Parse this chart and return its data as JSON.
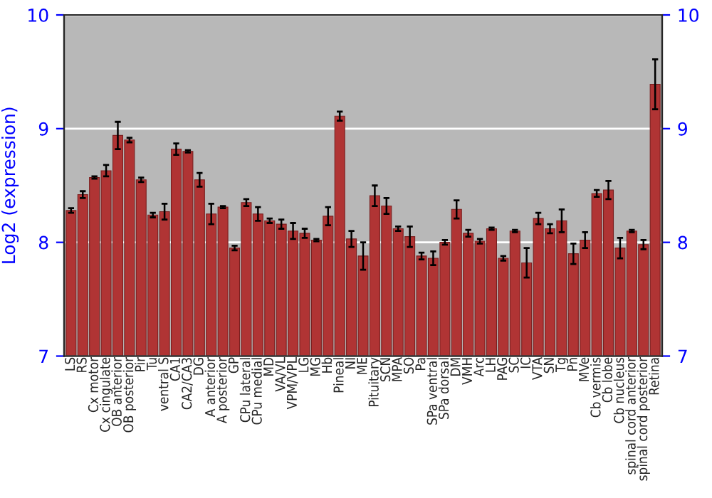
{
  "chart_data": {
    "type": "bar",
    "ylabel": "Log2 (expression)",
    "categories": [
      "LS",
      "RS",
      "Cx motor",
      "Cx cingulate",
      "OB anterior",
      "OB posterior",
      "Pir",
      "Tu",
      "ventral S",
      "CA1",
      "CA2/CA3",
      "DG",
      "A anterior",
      "A posterior",
      "GP",
      "CPu lateral",
      "CPu medial",
      "MD",
      "VA/VL",
      "VPM/VPL",
      "LG",
      "MG",
      "Hb",
      "Pineal",
      "NI",
      "ME",
      "Pituitary",
      "SCN",
      "MPA",
      "SO",
      "Pa",
      "SPa ventral",
      "SPa dorsal",
      "DM",
      "VMH",
      "Arc",
      "LH",
      "PAG",
      "SC",
      "IC",
      "VTA",
      "SN",
      "Tg",
      "Pn",
      "MVe",
      "Cb vermis",
      "Cb lobe",
      "Cb nucleus",
      "spinal cord anterior",
      "spinal cord posterior",
      "Retina"
    ],
    "values": [
      8.28,
      8.42,
      8.57,
      8.63,
      8.94,
      8.9,
      8.55,
      8.24,
      8.27,
      8.82,
      8.8,
      8.55,
      8.25,
      8.31,
      7.95,
      8.35,
      8.25,
      8.19,
      8.16,
      8.1,
      8.08,
      8.02,
      8.23,
      9.11,
      8.03,
      7.88,
      8.41,
      8.32,
      8.12,
      8.05,
      7.88,
      7.86,
      8.0,
      8.29,
      8.08,
      8.01,
      8.12,
      7.86,
      8.1,
      7.82,
      8.21,
      8.12,
      8.19,
      7.9,
      8.02,
      8.43,
      8.46,
      7.95,
      8.1,
      7.98,
      9.39
    ],
    "errors": [
      0.02,
      0.03,
      0.01,
      0.05,
      0.12,
      0.02,
      0.02,
      0.02,
      0.07,
      0.05,
      0.01,
      0.06,
      0.09,
      0.01,
      0.02,
      0.03,
      0.06,
      0.02,
      0.04,
      0.07,
      0.04,
      0.01,
      0.08,
      0.04,
      0.07,
      0.12,
      0.09,
      0.07,
      0.02,
      0.09,
      0.03,
      0.06,
      0.02,
      0.08,
      0.03,
      0.02,
      0.01,
      0.02,
      0.01,
      0.13,
      0.05,
      0.04,
      0.1,
      0.09,
      0.07,
      0.03,
      0.08,
      0.09,
      0.01,
      0.04,
      0.22
    ],
    "color": "#b03434",
    "ylim": [
      7,
      10
    ],
    "yticks": [
      7,
      8,
      9,
      10
    ],
    "y2lim": [
      7,
      10
    ],
    "y2ticks": [
      7,
      8,
      9,
      10
    ],
    "grid": "y",
    "legend": false
  }
}
